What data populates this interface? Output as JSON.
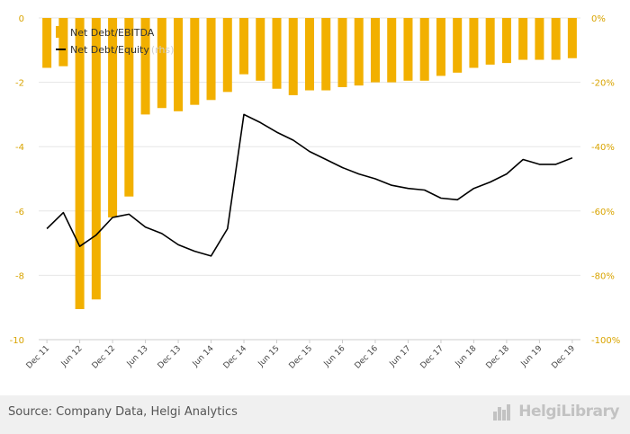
{
  "chart_data": {
    "type": "bar",
    "categories": [
      "Dec 11",
      "Mar 12",
      "Jun 12",
      "Sep 12",
      "Dec 12",
      "Mar 13",
      "Jun 13",
      "Sep 13",
      "Dec 13",
      "Mar 14",
      "Jun 14",
      "Sep 14",
      "Dec 14",
      "Mar 15",
      "Jun 15",
      "Sep 15",
      "Dec 15",
      "Mar 16",
      "Jun 16",
      "Sep 16",
      "Dec 16",
      "Mar 17",
      "Jun 17",
      "Sep 17",
      "Dec 17",
      "Mar 18",
      "Jun 18",
      "Sep 18",
      "Dec 18",
      "Mar 19",
      "Jun 19",
      "Sep 19",
      "Dec 19"
    ],
    "x_tick_labels": [
      "Dec 11",
      "Jun 12",
      "Dec 12",
      "Jun 13",
      "Dec 13",
      "Jun 14",
      "Dec 14",
      "Jun 15",
      "Dec 15",
      "Jun 16",
      "Dec 16",
      "Jun 17",
      "Dec 17",
      "Jun 18",
      "Dec 18",
      "Jun 19",
      "Dec 19"
    ],
    "series": [
      {
        "name": "Net Debt/EBITDA",
        "type": "bar",
        "axis": "left",
        "color": "#f2b000",
        "values": [
          -1.55,
          -1.5,
          -9.05,
          -8.75,
          -6.2,
          -5.55,
          -3.0,
          -2.8,
          -2.9,
          -2.7,
          -2.55,
          -2.3,
          -1.75,
          -1.95,
          -2.2,
          -2.4,
          -2.25,
          -2.25,
          -2.15,
          -2.1,
          -2.0,
          -2.0,
          -1.95,
          -1.95,
          -1.8,
          -1.7,
          -1.55,
          -1.45,
          -1.4,
          -1.3,
          -1.3,
          -1.3,
          -1.25
        ]
      },
      {
        "name": "Net Debt/Equity",
        "type": "line",
        "axis": "right",
        "color": "#000000",
        "values": [
          -65.5,
          -60.5,
          -71.0,
          -67.5,
          -62.0,
          -61.0,
          -65.0,
          -67.0,
          -70.5,
          -72.5,
          -74.0,
          -65.5,
          -30.0,
          -32.5,
          -35.5,
          -38.0,
          -41.5,
          -44.0,
          -46.5,
          -48.5,
          -50.0,
          -52.0,
          -53.0,
          -53.5,
          -56.0,
          -56.5,
          -53.0,
          -51.0,
          -48.5,
          -44.0,
          -45.5,
          -45.5,
          -43.5
        ]
      }
    ],
    "y_left": {
      "min": -10,
      "max": 0,
      "ticks": [
        "0",
        "-2",
        "-4",
        "-6",
        "-8",
        "-10"
      ]
    },
    "y_right": {
      "min": -100,
      "max": 0,
      "ticks": [
        "0%",
        "-20%",
        "-40%",
        "-60%",
        "-80%",
        "-100%"
      ]
    },
    "legend": {
      "placement": "top-left",
      "items": [
        "Net Debt/EBITDA",
        "Net Debt/Equity"
      ],
      "rhs_suffix": "(rhs)"
    },
    "grid": true
  },
  "footer": {
    "source": "Source: Company Data, Helgi Analytics",
    "brand": "HelgiLibrary"
  }
}
